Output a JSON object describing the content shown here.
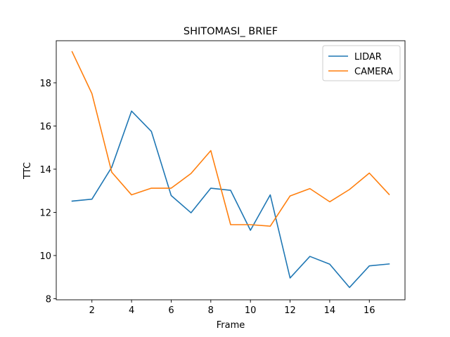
{
  "chart_data": {
    "type": "line",
    "title": "SHITOMASI_ BRIEF",
    "xlabel": "Frame",
    "ylabel": "TTC",
    "x": [
      1,
      2,
      3,
      4,
      5,
      6,
      7,
      8,
      9,
      10,
      11,
      12,
      13,
      14,
      15,
      16,
      17
    ],
    "xticks": [
      2,
      4,
      6,
      8,
      10,
      12,
      14,
      16
    ],
    "yticks": [
      8,
      10,
      12,
      14,
      16,
      18
    ],
    "xlim": [
      0.2,
      17.8
    ],
    "ylim": [
      7.95,
      19.95
    ],
    "grid": false,
    "legend_position": "upper right",
    "series": [
      {
        "name": "LIDAR",
        "color": "#1f77b4",
        "values": [
          12.52,
          12.61,
          14.09,
          16.69,
          15.75,
          12.78,
          11.98,
          13.12,
          13.02,
          11.17,
          12.81,
          8.96,
          9.96,
          9.6,
          8.52,
          9.52,
          9.61
        ]
      },
      {
        "name": "CAMERA",
        "color": "#ff7f0e",
        "values": [
          19.44,
          17.5,
          13.86,
          12.81,
          13.12,
          13.12,
          13.8,
          14.86,
          11.43,
          11.43,
          11.36,
          12.76,
          13.1,
          12.49,
          13.06,
          13.82,
          12.83
        ]
      }
    ]
  }
}
